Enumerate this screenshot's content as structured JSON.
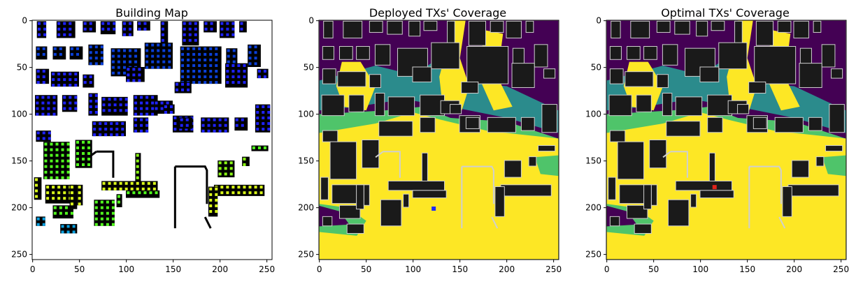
{
  "chart_data": [
    {
      "type": "heatmap",
      "title": "Building Map",
      "colors": {
        "background": "#ffffff",
        "building": "#000000",
        "markers": [
          "#1e22ff",
          "#0a3fd8",
          "#0aa0e0",
          "#16d8f0",
          "#52ff1e",
          "#8cff14",
          "#dcff1a"
        ]
      },
      "xticks": [
        0,
        50,
        100,
        150,
        200,
        250
      ],
      "yticks": [
        0,
        50,
        100,
        150,
        200,
        250
      ],
      "xlim": [
        0,
        255
      ],
      "ylim": [
        255,
        0
      ]
    },
    {
      "type": "heatmap",
      "title": "Deployed TXs' Coverage",
      "colormap": "viridis",
      "colors": {
        "low": "#440154",
        "mid1": "#2b8b8c",
        "mid2": "#4fc46a",
        "high": "#fde725",
        "building": "#1a1a1a",
        "tx_marker": "#1f2cff"
      },
      "xticks": [
        0,
        50,
        100,
        150,
        200,
        250
      ],
      "yticks": [
        0,
        50,
        100,
        150,
        200,
        250
      ],
      "xlim": [
        0,
        255
      ],
      "ylim": [
        255,
        0
      ]
    },
    {
      "type": "heatmap",
      "title": "Optimal TXs' Coverage",
      "colormap": "viridis",
      "colors": {
        "low": "#440154",
        "mid1": "#2b8b8c",
        "mid2": "#4fc46a",
        "high": "#fde725",
        "building": "#1a1a1a",
        "tx_marker": "#e0241c"
      },
      "xticks": [
        0,
        50,
        100,
        150,
        200,
        250
      ],
      "yticks": [
        0,
        50,
        100,
        150,
        200,
        250
      ],
      "xlim": [
        0,
        255
      ],
      "ylim": [
        255,
        0
      ]
    }
  ]
}
